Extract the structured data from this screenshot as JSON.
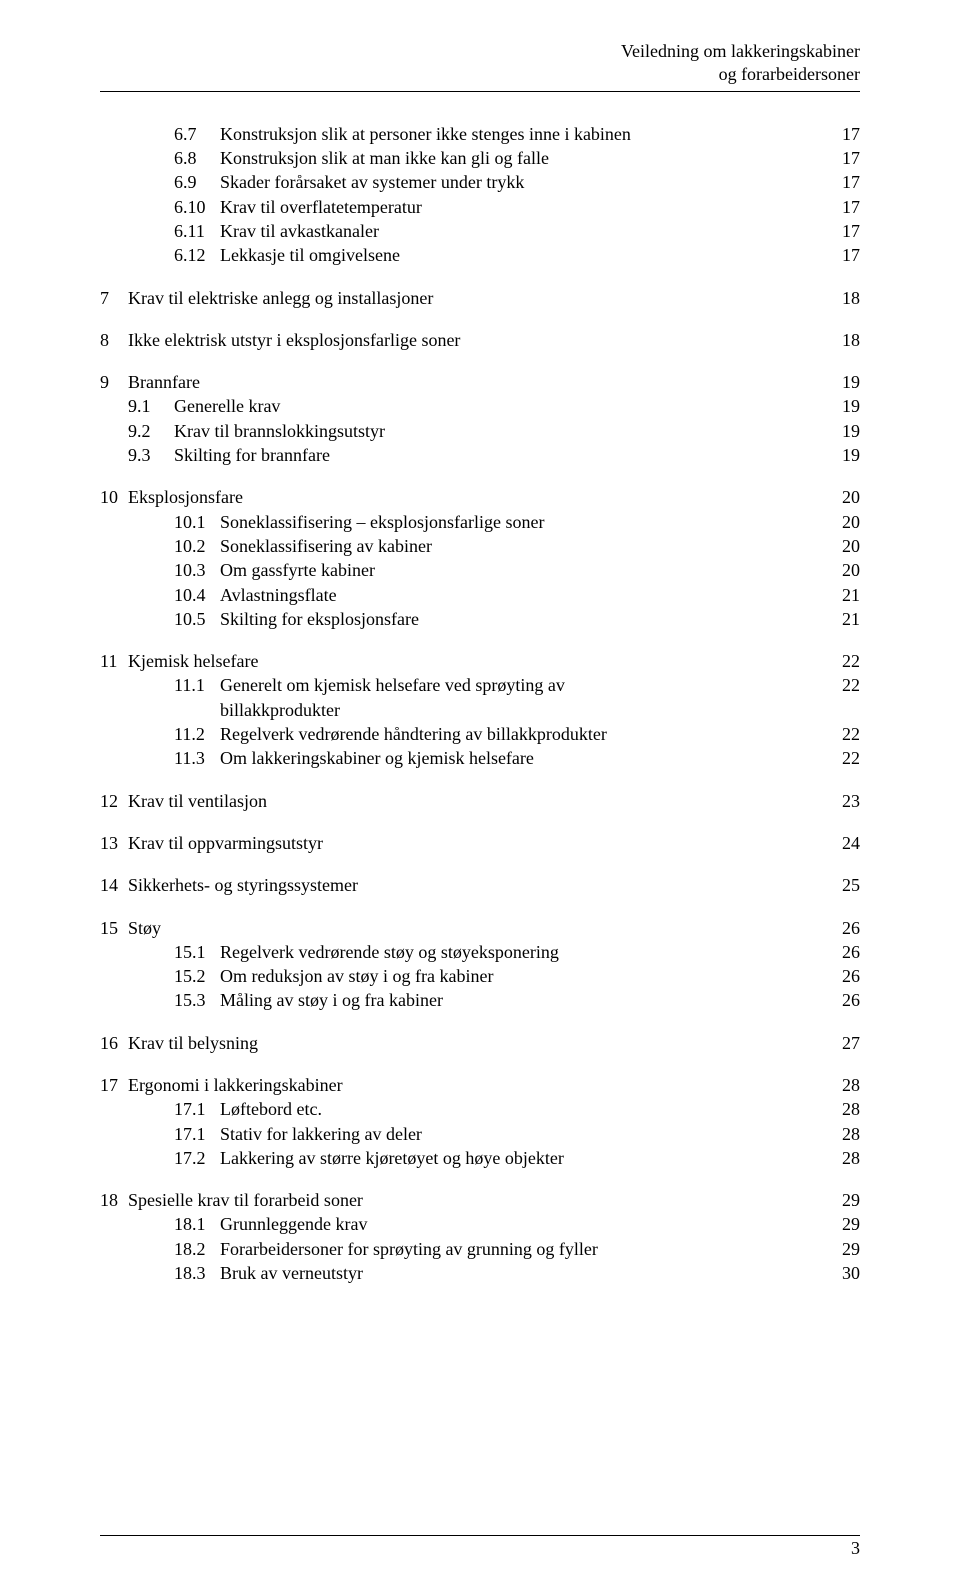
{
  "header": {
    "line1": "Veiledning om lakkeringskabiner",
    "line2": "og forarbeidersoner"
  },
  "footer": {
    "page_number": "3"
  },
  "toc": [
    {
      "type": "sub",
      "chapter": "",
      "num": "6.7",
      "label": "Konstruksjon slik at personer ikke stenges inne i kabinen",
      "page": "17"
    },
    {
      "type": "sub",
      "chapter": "",
      "num": "6.8",
      "label": "Konstruksjon slik at man ikke kan gli og falle",
      "page": "17"
    },
    {
      "type": "sub",
      "chapter": "",
      "num": "6.9",
      "label": "Skader forårsaket av systemer under trykk",
      "page": "17"
    },
    {
      "type": "sub",
      "chapter": "",
      "num": "6.10",
      "label": "Krav til overflatetemperatur",
      "page": "17"
    },
    {
      "type": "sub",
      "chapter": "",
      "num": "6.11",
      "label": "Krav til avkastkanaler",
      "page": "17"
    },
    {
      "type": "sub",
      "chapter": "",
      "num": "6.12",
      "label": "Lekkasje til omgivelsene",
      "page": "17"
    },
    {
      "type": "gap"
    },
    {
      "type": "top",
      "chapter": "7",
      "num": "",
      "label": "Krav til elektriske anlegg og installasjoner",
      "page": "18"
    },
    {
      "type": "gap"
    },
    {
      "type": "top",
      "chapter": "8",
      "num": "",
      "label": "Ikke elektrisk utstyr i eksplosjonsfarlige soner",
      "page": "18"
    },
    {
      "type": "gap"
    },
    {
      "type": "top",
      "chapter": "9",
      "num": "",
      "label": "Brannfare",
      "page": "19"
    },
    {
      "type": "sub2",
      "chapter": "",
      "num": "9.1",
      "label": "Generelle krav",
      "page": "19"
    },
    {
      "type": "sub2",
      "chapter": "",
      "num": "9.2",
      "label": "Krav til brannslokkingsutstyr",
      "page": "19"
    },
    {
      "type": "sub2",
      "chapter": "",
      "num": "9.3",
      "label": "Skilting for brannfare",
      "page": "19"
    },
    {
      "type": "gap"
    },
    {
      "type": "top",
      "chapter": "10",
      "num": "",
      "label": "Eksplosjonsfare",
      "page": "20"
    },
    {
      "type": "sub",
      "chapter": "",
      "num": "10.1",
      "label": "Soneklassifisering – eksplosjonsfarlige soner",
      "page": "20"
    },
    {
      "type": "sub",
      "chapter": "",
      "num": "10.2",
      "label": "Soneklassifisering av kabiner",
      "page": "20"
    },
    {
      "type": "sub",
      "chapter": "",
      "num": "10.3",
      "label": "Om gassfyrte kabiner",
      "page": "20"
    },
    {
      "type": "sub",
      "chapter": "",
      "num": "10.4",
      "label": "Avlastningsflate",
      "page": "21"
    },
    {
      "type": "sub",
      "chapter": "",
      "num": "10.5",
      "label": "Skilting for eksplosjonsfare",
      "page": "21"
    },
    {
      "type": "gap"
    },
    {
      "type": "top",
      "chapter": "11",
      "num": "",
      "label": "Kjemisk helsefare",
      "page": "22"
    },
    {
      "type": "sub",
      "chapter": "",
      "num": "11.1",
      "label": "Generelt om kjemisk helsefare ved sprøyting av",
      "page": "22"
    },
    {
      "type": "cont",
      "chapter": "",
      "num": "",
      "label": "billakkprodukter",
      "page": ""
    },
    {
      "type": "sub",
      "chapter": "",
      "num": "11.2",
      "label": "Regelverk vedrørende håndtering av billakkprodukter",
      "page": "22"
    },
    {
      "type": "sub",
      "chapter": "",
      "num": "11.3",
      "label": "Om lakkeringskabiner og kjemisk helsefare",
      "page": "22"
    },
    {
      "type": "gap"
    },
    {
      "type": "top",
      "chapter": "12",
      "num": "",
      "label": "Krav til ventilasjon",
      "page": "23"
    },
    {
      "type": "gap"
    },
    {
      "type": "top",
      "chapter": "13",
      "num": "",
      "label": "Krav til oppvarmingsutstyr",
      "page": "24"
    },
    {
      "type": "gap"
    },
    {
      "type": "top",
      "chapter": "14",
      "num": "",
      "label": "Sikkerhets- og styringssystemer",
      "page": "25"
    },
    {
      "type": "gap"
    },
    {
      "type": "top",
      "chapter": "15",
      "num": "",
      "label": "Støy",
      "page": "26"
    },
    {
      "type": "sub",
      "chapter": "",
      "num": "15.1",
      "label": "Regelverk vedrørende støy og støyeksponering",
      "page": "26"
    },
    {
      "type": "sub",
      "chapter": "",
      "num": "15.2",
      "label": "Om reduksjon av støy i og fra kabiner",
      "page": "26"
    },
    {
      "type": "sub",
      "chapter": "",
      "num": "15.3",
      "label": "Måling av støy i og fra kabiner",
      "page": "26"
    },
    {
      "type": "gap"
    },
    {
      "type": "top",
      "chapter": "16",
      "num": "",
      "label": "Krav til belysning",
      "page": "27"
    },
    {
      "type": "gap"
    },
    {
      "type": "top",
      "chapter": "17",
      "num": "",
      "label": "Ergonomi i lakkeringskabiner",
      "page": "28"
    },
    {
      "type": "sub",
      "chapter": "",
      "num": "17.1",
      "label": "Løftebord etc.",
      "page": "28"
    },
    {
      "type": "sub",
      "chapter": "",
      "num": "17.1",
      "label": "Stativ for lakkering av deler",
      "page": "28"
    },
    {
      "type": "sub",
      "chapter": "",
      "num": "17.2",
      "label": "Lakkering av større kjøretøyet og høye objekter",
      "page": "28"
    },
    {
      "type": "gap"
    },
    {
      "type": "top",
      "chapter": "18",
      "num": "",
      "label": "Spesielle krav til forarbeid soner",
      "page": "29"
    },
    {
      "type": "sub",
      "chapter": "",
      "num": "18.1",
      "label": "Grunnleggende krav",
      "page": "29"
    },
    {
      "type": "sub",
      "chapter": "",
      "num": "18.2",
      "label": "Forarbeidersoner for sprøyting av grunning og fyller",
      "page": "29"
    },
    {
      "type": "sub",
      "chapter": "",
      "num": "18.3",
      "label": "Bruk av verneutstyr",
      "page": "30"
    }
  ]
}
